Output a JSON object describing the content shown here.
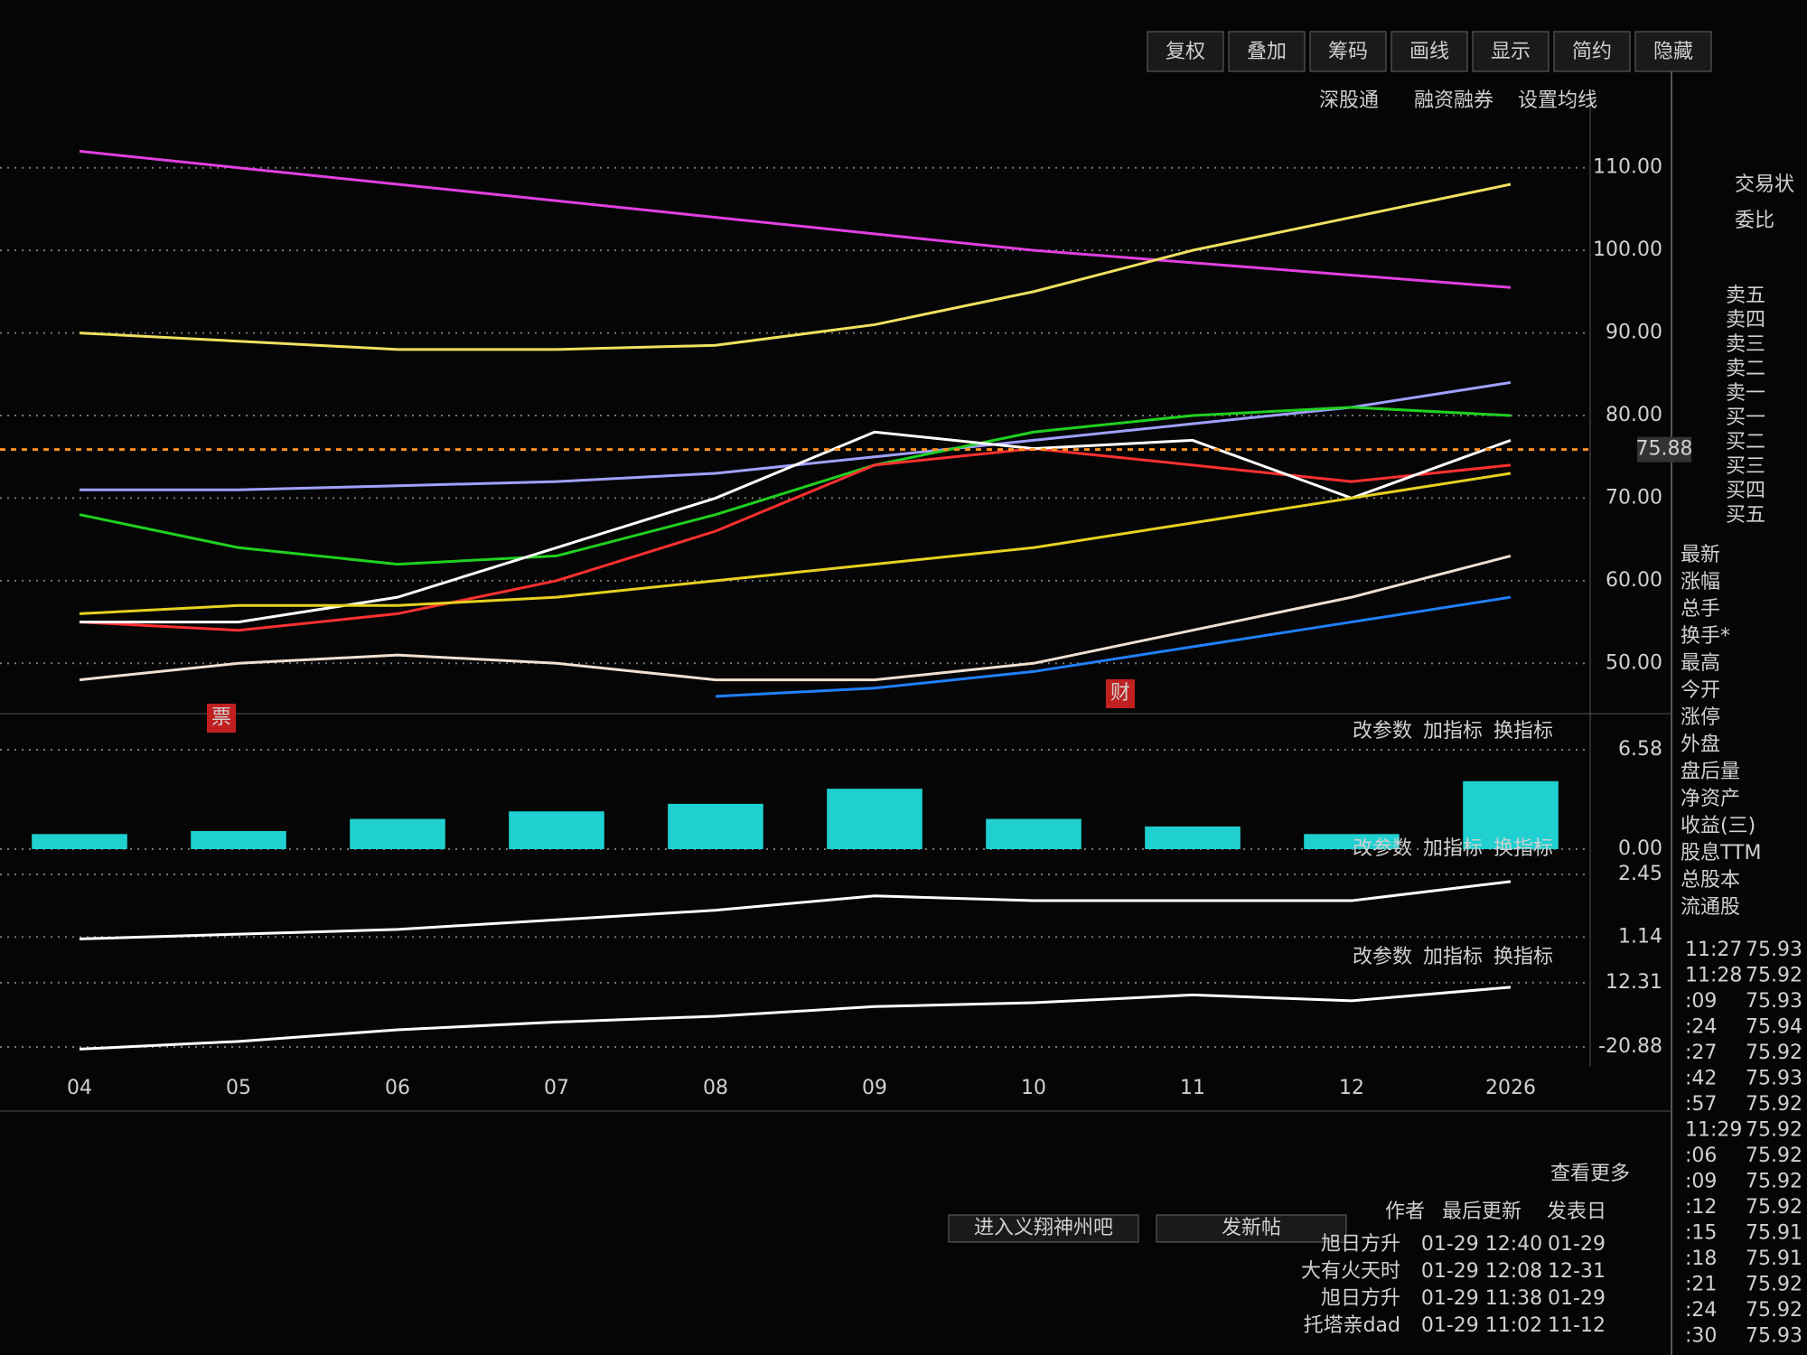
{
  "toolbar": {
    "buttons": [
      "复权",
      "叠加",
      "筹码",
      "画线",
      "显示",
      "简约",
      "隐藏"
    ]
  },
  "top_links": [
    "深股通",
    "融资融券",
    "设置均线"
  ],
  "price_chart": {
    "type": "line",
    "categories": [
      "04",
      "05",
      "06",
      "07",
      "08",
      "09",
      "10",
      "11",
      "12",
      "2026"
    ],
    "ylim": [
      45,
      115
    ],
    "yticks": [
      {
        "value": 50,
        "label": "50.00"
      },
      {
        "value": 60,
        "label": "60.00"
      },
      {
        "value": 70,
        "label": "70.00"
      },
      {
        "value": 80,
        "label": "80.00"
      },
      {
        "value": 90,
        "label": "90.00"
      },
      {
        "value": 100,
        "label": "100.00"
      },
      {
        "value": 110,
        "label": "110.00"
      }
    ],
    "grid": true,
    "last_price": {
      "value": 75.88,
      "label": "75.88"
    },
    "event_marks": [
      "票",
      "财"
    ],
    "series": [
      {
        "color": "#e040e0",
        "values": [
          112,
          110,
          108,
          106,
          104,
          102,
          100,
          98.5,
          97,
          95.5
        ]
      },
      {
        "color": "#f0e060",
        "values": [
          90,
          89,
          88,
          88,
          88.5,
          91,
          95,
          100,
          104,
          108
        ]
      },
      {
        "color": "#a0a0ff",
        "values": [
          71,
          71,
          71.5,
          72,
          73,
          75,
          77,
          79,
          81,
          84
        ]
      },
      {
        "color": "#20d020",
        "values": [
          68,
          64,
          62,
          63,
          68,
          74,
          78,
          80,
          81,
          80
        ]
      },
      {
        "color": "#ff3030",
        "values": [
          55,
          54,
          56,
          60,
          66,
          74,
          76,
          74,
          72,
          74
        ]
      },
      {
        "color": "#ffffff",
        "values": [
          55,
          55,
          58,
          64,
          70,
          78,
          76,
          77,
          70,
          77
        ]
      },
      {
        "color": "#e8d020",
        "values": [
          56,
          57,
          57,
          58,
          60,
          62,
          64,
          67,
          70,
          73
        ]
      },
      {
        "color": "#f0e0d0",
        "values": [
          48,
          50,
          51,
          50,
          48,
          48,
          50,
          54,
          58,
          63
        ]
      },
      {
        "color": "#2080ff",
        "values": [
          null,
          null,
          null,
          null,
          46,
          47,
          49,
          52,
          55,
          58
        ]
      }
    ]
  },
  "indicator_buttons": [
    "改参数",
    "加指标",
    "换指标"
  ],
  "volume_panel": {
    "type": "bar",
    "ylim": [
      0,
      6.58
    ],
    "yticks": [
      {
        "value": 6.58,
        "label": "6.58"
      },
      {
        "value": 0,
        "label": "0.00"
      }
    ],
    "color": "#20d0d0",
    "values": [
      1,
      1.2,
      2,
      2.5,
      3,
      4,
      2,
      1.5,
      1,
      4.5
    ]
  },
  "indicator_panel_1": {
    "type": "line",
    "ylim": [
      0.9,
      2.6
    ],
    "yticks": [
      {
        "value": 2.45,
        "label": "2.45"
      },
      {
        "value": 1.14,
        "label": "1.14"
      }
    ],
    "color": "#ffffff",
    "values": [
      1.1,
      1.2,
      1.3,
      1.5,
      1.7,
      2.0,
      1.9,
      1.9,
      1.9,
      2.3
    ]
  },
  "indicator_panel_2": {
    "type": "line",
    "ylim": [
      -26,
      16
    ],
    "yticks": [
      12.31,
      -20.88
    ],
    "color": "#ffffff",
    "values": [
      -22,
      -18,
      -12,
      -8,
      -5,
      0,
      2,
      6,
      3,
      10
    ]
  },
  "quote_panel": {
    "headers": [
      "交易状",
      "委比"
    ],
    "order_book": [
      "卖五",
      "卖四",
      "卖三",
      "卖二",
      "卖一",
      "买一",
      "买二",
      "买三",
      "买四",
      "买五"
    ],
    "stats": [
      "最新",
      "涨幅",
      "总手",
      "换手*",
      "最高",
      "今开",
      "涨停",
      "外盘",
      "盘后量",
      "净资产",
      "收益(三)",
      "股息TTM",
      "总股本",
      "流通股"
    ],
    "trades": [
      [
        "11:27",
        "75.93"
      ],
      [
        "11:28",
        "75.92"
      ],
      [
        ":09",
        "75.93"
      ],
      [
        ":24",
        "75.94"
      ],
      [
        ":27",
        "75.92"
      ],
      [
        ":42",
        "75.93"
      ],
      [
        ":57",
        "75.92"
      ],
      [
        "11:29",
        "75.92"
      ],
      [
        ":06",
        "75.92"
      ],
      [
        ":09",
        "75.92"
      ],
      [
        ":12",
        "75.92"
      ],
      [
        ":15",
        "75.91"
      ],
      [
        ":18",
        "75.91"
      ],
      [
        ":21",
        "75.92"
      ],
      [
        ":24",
        "75.92"
      ],
      [
        ":30",
        "75.93"
      ]
    ]
  },
  "forum": {
    "more": "查看更多",
    "buttons": [
      "进入义翔神州吧",
      "发新帖"
    ],
    "headers": [
      "作者",
      "最后更新",
      "发表日"
    ],
    "rows": [
      [
        "旭日方升",
        "01-29 12:40",
        "01-29"
      ],
      [
        "大有火天时",
        "01-29 12:08",
        "12-31"
      ],
      [
        "旭日方升",
        "01-29 11:38",
        "01-29"
      ],
      [
        "托塔亲dad",
        "01-29 11:02",
        "11-12"
      ]
    ]
  }
}
